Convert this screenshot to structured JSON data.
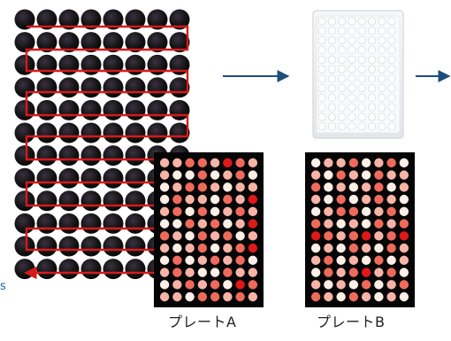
{
  "colors": {
    "arrow": "#1e4e79",
    "path": "#d61a1a",
    "well_dark": "#0c0c0c",
    "plate_bg": "#050505",
    "label_text": "#222222",
    "edge_text": "#1f5fb0"
  },
  "labels": {
    "plate_a": "プレートA",
    "plate_b": "プレートB",
    "left_edge_fragment": "s"
  },
  "source_grid": {
    "rows": 12,
    "cols": 8
  },
  "plate_a": {
    "rows": 12,
    "cols": 8,
    "wells": [
      "ppmmpdmp",
      "pllmlpml",
      "lpmmplpp",
      "lmpplmpd",
      "pmlmlpmp",
      "llmpmlpd",
      "mplmpmlp",
      "plpmlpmd",
      "lmlpmpml",
      "pmpllmpp",
      "lpmpmldm",
      "pplmmpmp"
    ]
  },
  "plate_b": {
    "rows": 12,
    "cols": 8,
    "wells": [
      "lppmlpml",
      "plmplmpp",
      "mlplpmlp",
      "plmlpmpl",
      "lpmmlpml",
      "mplplmpm",
      "dmpmdpmd",
      "lplmplmp",
      "pmlplmlp",
      "lmpmdpml",
      "plplmlpm",
      "mplmplpl"
    ]
  }
}
